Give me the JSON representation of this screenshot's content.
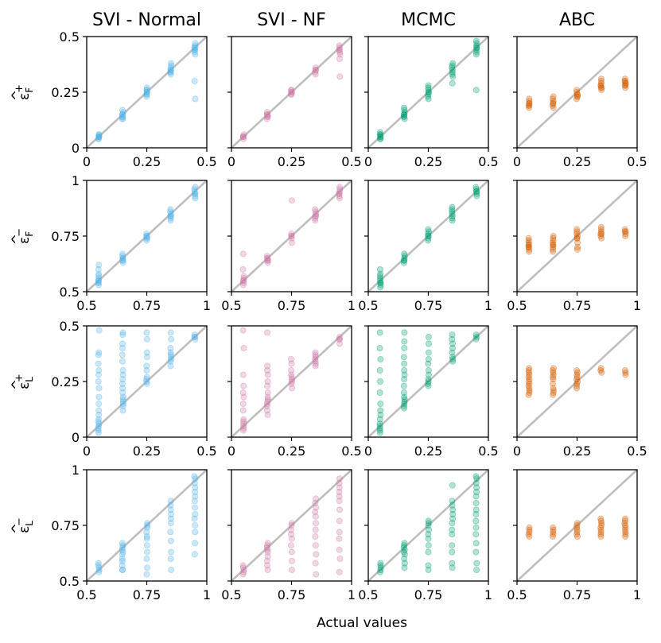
{
  "chart_data": {
    "type": "scatter",
    "layout": "4x4 grid",
    "xlabel": "Actual values",
    "columns": [
      {
        "title": "SVI - Normal",
        "color": "#56b4e9"
      },
      {
        "title": "SVI - NF",
        "color": "#cc79a7"
      },
      {
        "title": "MCMC",
        "color": "#009e73"
      },
      {
        "title": "ABC",
        "color": "#d55e00"
      }
    ],
    "rows": [
      {
        "ylabel": "ε̂_F⁺",
        "sym": "ε",
        "sub": "F",
        "sup": "+",
        "lim": [
          0,
          0.5
        ],
        "ticks": [
          0,
          0.25,
          0.5
        ],
        "tick_labels": [
          "0",
          "0.25",
          "0.5"
        ],
        "x_groups": [
          0.05,
          0.15,
          0.25,
          0.35,
          0.45
        ]
      },
      {
        "ylabel": "ε̂_F⁻",
        "sym": "ε",
        "sub": "F",
        "sup": "−",
        "lim": [
          0.5,
          1
        ],
        "ticks": [
          0.5,
          0.75,
          1
        ],
        "tick_labels": [
          "0.5",
          "0.75",
          "1"
        ],
        "x_groups": [
          0.55,
          0.65,
          0.75,
          0.85,
          0.95
        ]
      },
      {
        "ylabel": "ε̂_L⁺",
        "sym": "ε",
        "sub": "L",
        "sup": "+",
        "lim": [
          0,
          0.5
        ],
        "ticks": [
          0,
          0.25,
          0.5
        ],
        "tick_labels": [
          "0",
          "0.25",
          "0.5"
        ],
        "x_groups": [
          0.05,
          0.15,
          0.25,
          0.35,
          0.45
        ]
      },
      {
        "ylabel": "ε̂_L⁻",
        "sym": "ε",
        "sub": "L",
        "sup": "−",
        "lim": [
          0.5,
          1
        ],
        "ticks": [
          0.5,
          0.75,
          1
        ],
        "tick_labels": [
          "0.5",
          "0.75",
          "1"
        ],
        "x_groups": [
          0.55,
          0.65,
          0.75,
          0.85,
          0.95
        ]
      }
    ],
    "panels": [
      [
        {
          "groups": [
            [
              0.04,
              0.05,
              0.05,
              0.06,
              0.05,
              0.04,
              0.06,
              0.05
            ],
            [
              0.13,
              0.14,
              0.15,
              0.16,
              0.17,
              0.14,
              0.15,
              0.13
            ],
            [
              0.23,
              0.24,
              0.25,
              0.26,
              0.27,
              0.25,
              0.24,
              0.26
            ],
            [
              0.33,
              0.34,
              0.35,
              0.36,
              0.37,
              0.38,
              0.35,
              0.34
            ],
            [
              0.43,
              0.44,
              0.45,
              0.46,
              0.47,
              0.42,
              0.3,
              0.22,
              0.45,
              0.44
            ]
          ]
        },
        {
          "groups": [
            [
              0.05,
              0.05,
              0.06,
              0.04,
              0.05
            ],
            [
              0.13,
              0.14,
              0.15,
              0.16,
              0.14,
              0.15
            ],
            [
              0.24,
              0.25,
              0.26,
              0.25,
              0.24,
              0.26
            ],
            [
              0.33,
              0.34,
              0.35,
              0.36,
              0.35
            ],
            [
              0.43,
              0.44,
              0.45,
              0.46,
              0.42,
              0.4,
              0.32,
              0.44
            ]
          ]
        },
        {
          "groups": [
            [
              0.04,
              0.05,
              0.06,
              0.07,
              0.05,
              0.04,
              0.06
            ],
            [
              0.13,
              0.14,
              0.15,
              0.16,
              0.17,
              0.18,
              0.14,
              0.15
            ],
            [
              0.22,
              0.24,
              0.25,
              0.26,
              0.27,
              0.28,
              0.23,
              0.25
            ],
            [
              0.32,
              0.33,
              0.35,
              0.36,
              0.37,
              0.38,
              0.34,
              0.29
            ],
            [
              0.42,
              0.44,
              0.45,
              0.46,
              0.47,
              0.48,
              0.26,
              0.43,
              0.45
            ]
          ]
        },
        {
          "groups": [
            [
              0.18,
              0.19,
              0.2,
              0.21,
              0.22,
              0.19,
              0.2
            ],
            [
              0.18,
              0.19,
              0.2,
              0.21,
              0.22,
              0.23,
              0.2
            ],
            [
              0.22,
              0.23,
              0.24,
              0.25,
              0.26,
              0.24,
              0.23
            ],
            [
              0.26,
              0.27,
              0.28,
              0.29,
              0.3,
              0.31,
              0.28,
              0.27
            ],
            [
              0.27,
              0.28,
              0.29,
              0.3,
              0.31,
              0.29,
              0.28,
              0.3
            ]
          ]
        }
      ],
      [
        {
          "groups": [
            [
              0.53,
              0.54,
              0.55,
              0.56,
              0.57,
              0.58,
              0.6,
              0.62,
              0.54,
              0.55
            ],
            [
              0.63,
              0.64,
              0.65,
              0.66,
              0.67,
              0.64,
              0.65
            ],
            [
              0.73,
              0.74,
              0.75,
              0.76,
              0.74,
              0.75
            ],
            [
              0.82,
              0.83,
              0.84,
              0.85,
              0.86,
              0.87,
              0.84
            ],
            [
              0.92,
              0.93,
              0.94,
              0.95,
              0.96,
              0.97,
              0.94
            ]
          ]
        },
        {
          "groups": [
            [
              0.53,
              0.54,
              0.55,
              0.56,
              0.57,
              0.6,
              0.67,
              0.55
            ],
            [
              0.63,
              0.64,
              0.65,
              0.66,
              0.64,
              0.65
            ],
            [
              0.72,
              0.74,
              0.75,
              0.76,
              0.91,
              0.75
            ],
            [
              0.82,
              0.83,
              0.84,
              0.85,
              0.86,
              0.87,
              0.84
            ],
            [
              0.92,
              0.93,
              0.94,
              0.95,
              0.96,
              0.97,
              0.94
            ]
          ]
        },
        {
          "groups": [
            [
              0.52,
              0.53,
              0.54,
              0.55,
              0.56,
              0.57,
              0.58,
              0.6,
              0.54
            ],
            [
              0.63,
              0.64,
              0.65,
              0.66,
              0.67,
              0.64
            ],
            [
              0.73,
              0.74,
              0.75,
              0.76,
              0.77,
              0.78,
              0.75
            ],
            [
              0.82,
              0.83,
              0.84,
              0.85,
              0.86,
              0.87,
              0.88
            ],
            [
              0.93,
              0.94,
              0.95,
              0.96,
              0.97,
              0.95
            ]
          ]
        },
        {
          "groups": [
            [
              0.68,
              0.69,
              0.7,
              0.71,
              0.72,
              0.73,
              0.74,
              0.7,
              0.71
            ],
            [
              0.68,
              0.69,
              0.7,
              0.71,
              0.72,
              0.73,
              0.74,
              0.75,
              0.71
            ],
            [
              0.69,
              0.7,
              0.72,
              0.74,
              0.75,
              0.76,
              0.77,
              0.78,
              0.74
            ],
            [
              0.74,
              0.75,
              0.76,
              0.77,
              0.78,
              0.79,
              0.76
            ],
            [
              0.75,
              0.76,
              0.77,
              0.78,
              0.77
            ]
          ]
        }
      ],
      [
        {
          "groups": [
            [
              0.02,
              0.03,
              0.04,
              0.05,
              0.06,
              0.07,
              0.08,
              0.1,
              0.12,
              0.15,
              0.18,
              0.22,
              0.25,
              0.28,
              0.3,
              0.33,
              0.37,
              0.38,
              0.48
            ],
            [
              0.12,
              0.14,
              0.15,
              0.16,
              0.17,
              0.18,
              0.2,
              0.22,
              0.24,
              0.26,
              0.28,
              0.3,
              0.34,
              0.37,
              0.4,
              0.42,
              0.46,
              0.47
            ],
            [
              0.24,
              0.25,
              0.26,
              0.27,
              0.3,
              0.32,
              0.36,
              0.38,
              0.44,
              0.47
            ],
            [
              0.32,
              0.34,
              0.35,
              0.36,
              0.37,
              0.38,
              0.4,
              0.44,
              0.47
            ],
            [
              0.44,
              0.45,
              0.46,
              0.45
            ]
          ]
        },
        {
          "groups": [
            [
              0.03,
              0.04,
              0.05,
              0.06,
              0.07,
              0.08,
              0.12,
              0.15,
              0.18,
              0.2,
              0.23,
              0.28,
              0.4,
              0.48
            ],
            [
              0.1,
              0.12,
              0.14,
              0.15,
              0.16,
              0.17,
              0.18,
              0.2,
              0.23,
              0.25,
              0.28,
              0.3,
              0.32,
              0.47
            ],
            [
              0.22,
              0.24,
              0.25,
              0.26,
              0.27,
              0.28,
              0.3,
              0.33,
              0.35
            ],
            [
              0.32,
              0.33,
              0.34,
              0.35,
              0.36,
              0.37,
              0.38
            ],
            [
              0.42,
              0.44,
              0.45,
              0.44
            ]
          ]
        },
        {
          "groups": [
            [
              0.02,
              0.03,
              0.04,
              0.05,
              0.06,
              0.08,
              0.1,
              0.12,
              0.15,
              0.2,
              0.25,
              0.3,
              0.35,
              0.4,
              0.47
            ],
            [
              0.13,
              0.14,
              0.15,
              0.16,
              0.17,
              0.18,
              0.2,
              0.23,
              0.26,
              0.28,
              0.3,
              0.33,
              0.36,
              0.4,
              0.43,
              0.47
            ],
            [
              0.23,
              0.24,
              0.25,
              0.26,
              0.28,
              0.3,
              0.33,
              0.35,
              0.38,
              0.42,
              0.45
            ],
            [
              0.34,
              0.35,
              0.36,
              0.38,
              0.4,
              0.42,
              0.44,
              0.46
            ],
            [
              0.44,
              0.45,
              0.46
            ]
          ]
        },
        {
          "groups": [
            [
              0.19,
              0.2,
              0.21,
              0.22,
              0.23,
              0.24,
              0.25,
              0.26,
              0.27,
              0.28,
              0.29,
              0.3,
              0.31
            ],
            [
              0.19,
              0.2,
              0.21,
              0.22,
              0.24,
              0.26,
              0.27,
              0.28,
              0.29,
              0.3,
              0.31
            ],
            [
              0.22,
              0.23,
              0.24,
              0.25,
              0.26,
              0.27,
              0.28,
              0.29,
              0.3
            ],
            [
              0.29,
              0.3,
              0.31
            ],
            [
              0.28,
              0.29,
              0.3
            ]
          ]
        }
      ],
      [
        {
          "groups": [
            [
              0.54,
              0.55,
              0.56,
              0.57,
              0.58
            ],
            [
              0.55,
              0.57,
              0.59,
              0.6,
              0.62,
              0.63,
              0.64,
              0.65,
              0.66,
              0.67,
              0.55
            ],
            [
              0.53,
              0.56,
              0.6,
              0.63,
              0.66,
              0.69,
              0.7,
              0.72,
              0.74,
              0.75,
              0.76
            ],
            [
              0.55,
              0.6,
              0.63,
              0.68,
              0.72,
              0.76,
              0.78,
              0.8,
              0.82,
              0.84,
              0.86
            ],
            [
              0.62,
              0.67,
              0.72,
              0.75,
              0.78,
              0.8,
              0.83,
              0.86,
              0.88,
              0.9,
              0.92,
              0.94,
              0.96,
              0.97
            ]
          ]
        },
        {
          "groups": [
            [
              0.53,
              0.54,
              0.55,
              0.56,
              0.57
            ],
            [
              0.55,
              0.57,
              0.59,
              0.61,
              0.63,
              0.64,
              0.65,
              0.66,
              0.67
            ],
            [
              0.55,
              0.59,
              0.63,
              0.66,
              0.69,
              0.71,
              0.73,
              0.75,
              0.76
            ],
            [
              0.53,
              0.58,
              0.62,
              0.66,
              0.7,
              0.73,
              0.76,
              0.79,
              0.81,
              0.83,
              0.85,
              0.87
            ],
            [
              0.54,
              0.6,
              0.64,
              0.69,
              0.72,
              0.77,
              0.82,
              0.86,
              0.88,
              0.9,
              0.92,
              0.94,
              0.96
            ]
          ]
        },
        {
          "groups": [
            [
              0.54,
              0.55,
              0.56,
              0.57,
              0.58
            ],
            [
              0.56,
              0.58,
              0.6,
              0.62,
              0.63,
              0.64,
              0.65,
              0.66,
              0.67
            ],
            [
              0.55,
              0.57,
              0.63,
              0.66,
              0.69,
              0.71,
              0.73,
              0.75,
              0.76,
              0.77
            ],
            [
              0.56,
              0.58,
              0.63,
              0.66,
              0.71,
              0.73,
              0.76,
              0.78,
              0.8,
              0.82,
              0.84,
              0.86,
              0.93
            ],
            [
              0.55,
              0.58,
              0.63,
              0.67,
              0.71,
              0.74,
              0.77,
              0.8,
              0.82,
              0.85,
              0.88,
              0.9,
              0.92,
              0.94,
              0.96,
              0.97
            ]
          ]
        },
        {
          "groups": [
            [
              0.7,
              0.71,
              0.72,
              0.73,
              0.74
            ],
            [
              0.7,
              0.71,
              0.72,
              0.73,
              0.74
            ],
            [
              0.7,
              0.71,
              0.72,
              0.73,
              0.74,
              0.75,
              0.76
            ],
            [
              0.7,
              0.71,
              0.72,
              0.73,
              0.74,
              0.75,
              0.76,
              0.77,
              0.78
            ],
            [
              0.7,
              0.71,
              0.72,
              0.73,
              0.74,
              0.75,
              0.76,
              0.77,
              0.78
            ]
          ]
        }
      ]
    ]
  }
}
